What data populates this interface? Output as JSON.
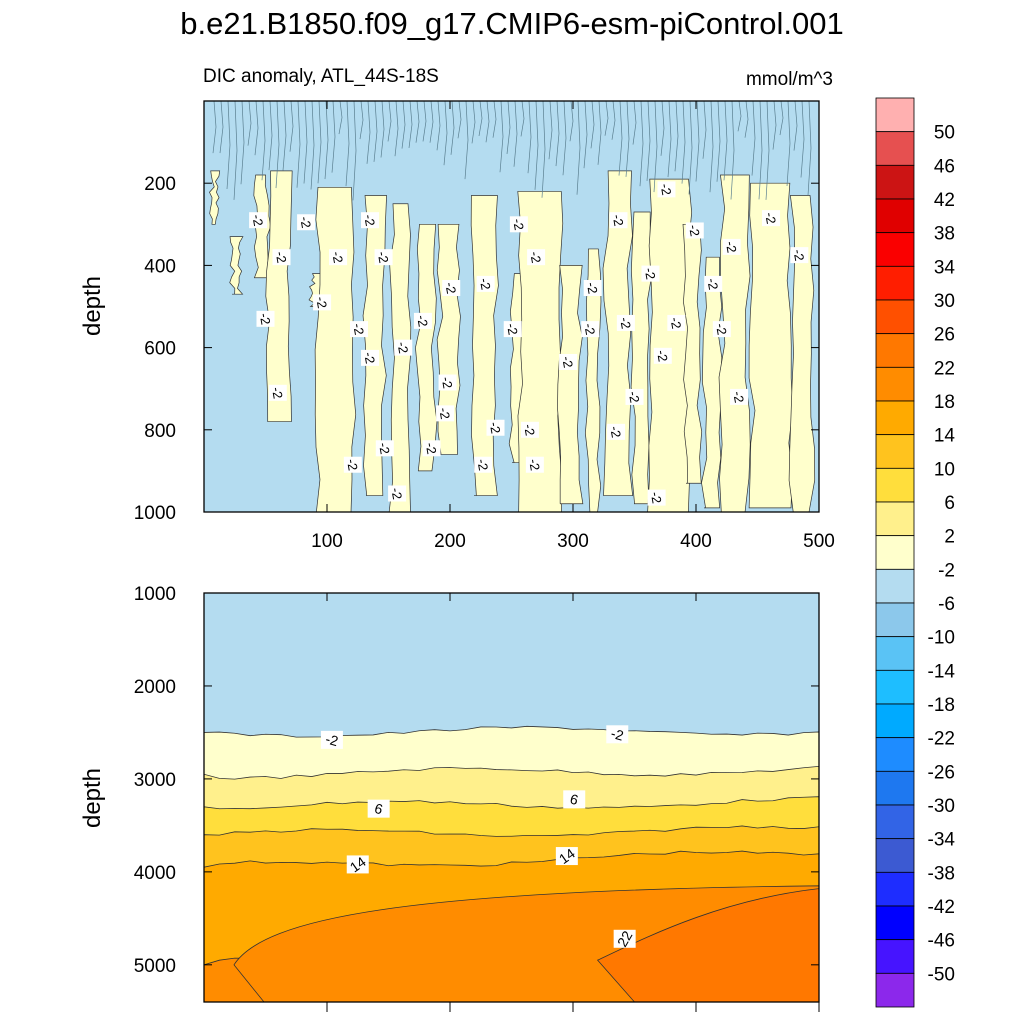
{
  "title": "b.e21.B1850.f09_g17.CMIP6-esm-piControl.001",
  "chart_data": [
    {
      "type": "contour",
      "panel": "upper",
      "title_left": "DIC anomaly, ATL_44S-18S",
      "title_right": "mmol/m^3",
      "xlabel": "",
      "ylabel": "depth",
      "xlim": [
        0,
        500
      ],
      "ylim": [
        1000,
        0
      ],
      "xticks": [
        "100",
        "200",
        "300",
        "400",
        "500"
      ],
      "yticks": [
        "200",
        "400",
        "600",
        "800",
        "1000"
      ],
      "background_level": "-6 to -2",
      "contour_labels": [
        {
          "x": 44,
          "y": 290,
          "text": "-2"
        },
        {
          "x": 83,
          "y": 295,
          "text": "-2"
        },
        {
          "x": 135,
          "y": 290,
          "text": "-2"
        },
        {
          "x": 256,
          "y": 300,
          "text": "-2"
        },
        {
          "x": 337,
          "y": 290,
          "text": "-2"
        },
        {
          "x": 376,
          "y": 215,
          "text": "-2"
        },
        {
          "x": 399,
          "y": 315,
          "text": "-2"
        },
        {
          "x": 429,
          "y": 355,
          "text": "-2"
        },
        {
          "x": 461,
          "y": 285,
          "text": "-2"
        },
        {
          "x": 484,
          "y": 375,
          "text": "-2"
        },
        {
          "x": 63,
          "y": 380,
          "text": "-2"
        },
        {
          "x": 109,
          "y": 380,
          "text": "-2"
        },
        {
          "x": 146,
          "y": 380,
          "text": "-2"
        },
        {
          "x": 270,
          "y": 380,
          "text": "-2"
        },
        {
          "x": 363,
          "y": 420,
          "text": "-2"
        },
        {
          "x": 414,
          "y": 445,
          "text": "-2"
        },
        {
          "x": 201,
          "y": 455,
          "text": "-2"
        },
        {
          "x": 229,
          "y": 445,
          "text": "-2"
        },
        {
          "x": 316,
          "y": 455,
          "text": "-2"
        },
        {
          "x": 96,
          "y": 490,
          "text": "-2"
        },
        {
          "x": 50,
          "y": 530,
          "text": "-2"
        },
        {
          "x": 126,
          "y": 555,
          "text": "-2"
        },
        {
          "x": 178,
          "y": 535,
          "text": "-2"
        },
        {
          "x": 251,
          "y": 555,
          "text": "-2"
        },
        {
          "x": 314,
          "y": 555,
          "text": "-2"
        },
        {
          "x": 343,
          "y": 540,
          "text": "-2"
        },
        {
          "x": 384,
          "y": 540,
          "text": "-2"
        },
        {
          "x": 421,
          "y": 555,
          "text": "-2"
        },
        {
          "x": 162,
          "y": 600,
          "text": "-2"
        },
        {
          "x": 135,
          "y": 625,
          "text": "-2"
        },
        {
          "x": 373,
          "y": 620,
          "text": "-2"
        },
        {
          "x": 296,
          "y": 635,
          "text": "-2"
        },
        {
          "x": 198,
          "y": 685,
          "text": "-2"
        },
        {
          "x": 60,
          "y": 710,
          "text": "-2"
        },
        {
          "x": 350,
          "y": 720,
          "text": "-2"
        },
        {
          "x": 435,
          "y": 720,
          "text": "-2"
        },
        {
          "x": 196,
          "y": 760,
          "text": "-2"
        },
        {
          "x": 237,
          "y": 795,
          "text": "-2"
        },
        {
          "x": 265,
          "y": 800,
          "text": "-2"
        },
        {
          "x": 335,
          "y": 805,
          "text": "-2"
        },
        {
          "x": 147,
          "y": 845,
          "text": "-2"
        },
        {
          "x": 185,
          "y": 845,
          "text": "-2"
        },
        {
          "x": 121,
          "y": 885,
          "text": "-2"
        },
        {
          "x": 227,
          "y": 885,
          "text": "-2"
        },
        {
          "x": 269,
          "y": 885,
          "text": "-2"
        },
        {
          "x": 157,
          "y": 955,
          "text": "-2"
        },
        {
          "x": 368,
          "y": 965,
          "text": "-2"
        }
      ]
    },
    {
      "type": "contour",
      "panel": "lower",
      "xlabel": "",
      "ylabel": "depth",
      "xlim": [
        0,
        500
      ],
      "ylim": [
        5400,
        1000
      ],
      "yticks": [
        "1000",
        "2000",
        "3000",
        "4000",
        "5000"
      ],
      "level_boundaries_depth_at_edges": [
        {
          "level": -2,
          "left_depth": 2500,
          "right_depth": 2480
        },
        {
          "level": 2,
          "left_depth": 2950,
          "right_depth": 2900
        },
        {
          "level": 6,
          "left_depth": 3300,
          "right_depth": 3250
        },
        {
          "level": 10,
          "left_depth": 3600,
          "right_depth": 3550
        },
        {
          "level": 14,
          "left_depth": 3950,
          "right_depth": 3800
        },
        {
          "level": 18,
          "left_depth": 5000,
          "right_depth": 4200
        }
      ],
      "contour_labels": [
        {
          "x": 104,
          "y": 2580,
          "text": "-2"
        },
        {
          "x": 336,
          "y": 2520,
          "text": "-2"
        },
        {
          "x": 142,
          "y": 3320,
          "text": "6"
        },
        {
          "x": 301,
          "y": 3220,
          "text": "6"
        },
        {
          "x": 125,
          "y": 3920,
          "text": "14"
        },
        {
          "x": 295,
          "y": 3830,
          "text": "14"
        },
        {
          "x": 342,
          "y": 4720,
          "text": "22"
        }
      ]
    },
    {
      "type": "colorbar",
      "labels": [
        "50",
        "46",
        "42",
        "38",
        "34",
        "30",
        "26",
        "22",
        "18",
        "14",
        "10",
        "6",
        "2",
        "-2",
        "-6",
        "-10",
        "-14",
        "-18",
        "-22",
        "-26",
        "-30",
        "-34",
        "-38",
        "-42",
        "-46",
        "-50"
      ],
      "colors": [
        "#ffb0b0",
        "#e65050",
        "#cc1414",
        "#e00000",
        "#fa0000",
        "#ff1e00",
        "#ff5000",
        "#ff7800",
        "#ff8c00",
        "#ffaa00",
        "#ffc31e",
        "#ffde3c",
        "#fff08c",
        "#ffffcc",
        "#b4dcf0",
        "#8cc8eb",
        "#5ac3f5",
        "#1ebeff",
        "#00aaff",
        "#1e8cff",
        "#1e78f0",
        "#3264e6",
        "#3c5ad2",
        "#1e2dff",
        "#0000ff",
        "#4614ff",
        "#8c28eb"
      ]
    }
  ]
}
